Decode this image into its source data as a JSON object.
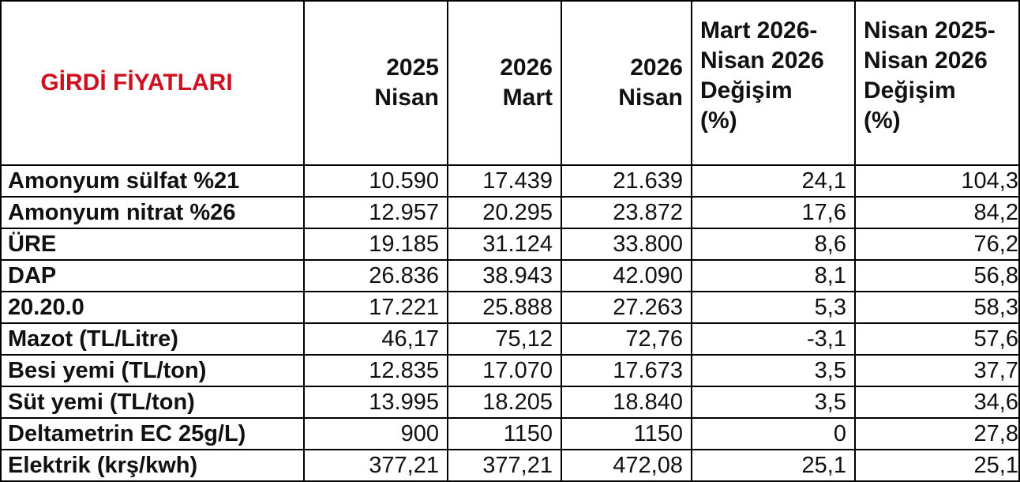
{
  "table": {
    "title": "GİRDİ FİYATLARI",
    "columns": [
      {
        "lines": [
          "2025",
          "Nisan"
        ]
      },
      {
        "lines": [
          "2026",
          "Mart"
        ]
      },
      {
        "lines": [
          "2026",
          "Nisan"
        ]
      },
      {
        "lines": [
          "Mart 2026-",
          "Nisan 2026",
          "Değişim",
          "(%)"
        ]
      },
      {
        "lines": [
          "Nisan 2025-",
          "Nisan 2026",
          "Değişim",
          "(%)"
        ]
      }
    ],
    "rows": [
      {
        "name": "Amonyum sülfat %21",
        "values": [
          "10.590",
          "17.439",
          "21.639",
          "24,1",
          "104,3"
        ]
      },
      {
        "name": "Amonyum nitrat %26",
        "values": [
          "12.957",
          "20.295",
          "23.872",
          "17,6",
          "84,2"
        ]
      },
      {
        "name": "ÜRE",
        "values": [
          "19.185",
          "31.124",
          "33.800",
          "8,6",
          "76,2"
        ]
      },
      {
        "name": "DAP",
        "values": [
          "26.836",
          "38.943",
          "42.090",
          "8,1",
          "56,8"
        ]
      },
      {
        "name": "20.20.0",
        "values": [
          "17.221",
          "25.888",
          "27.263",
          "5,3",
          "58,3"
        ]
      },
      {
        "name": "Mazot (TL/Litre)",
        "values": [
          "46,17",
          "75,12",
          "72,76",
          "-3,1",
          "57,6"
        ]
      },
      {
        "name": "Besi yemi (TL/ton)",
        "values": [
          "12.835",
          "17.070",
          "17.673",
          "3,5",
          "37,7"
        ]
      },
      {
        "name": "Süt yemi (TL/ton)",
        "values": [
          "13.995",
          "18.205",
          "18.840",
          "3,5",
          "34,6"
        ]
      },
      {
        "name": "Deltametrin EC 25g/L)",
        "values": [
          "900",
          "1150",
          "1150",
          "0",
          "27,8"
        ]
      },
      {
        "name": "Elektrik (krş/kwh)",
        "values": [
          "377,21",
          "377,21",
          "472,08",
          "25,1",
          "25,1"
        ]
      }
    ]
  }
}
